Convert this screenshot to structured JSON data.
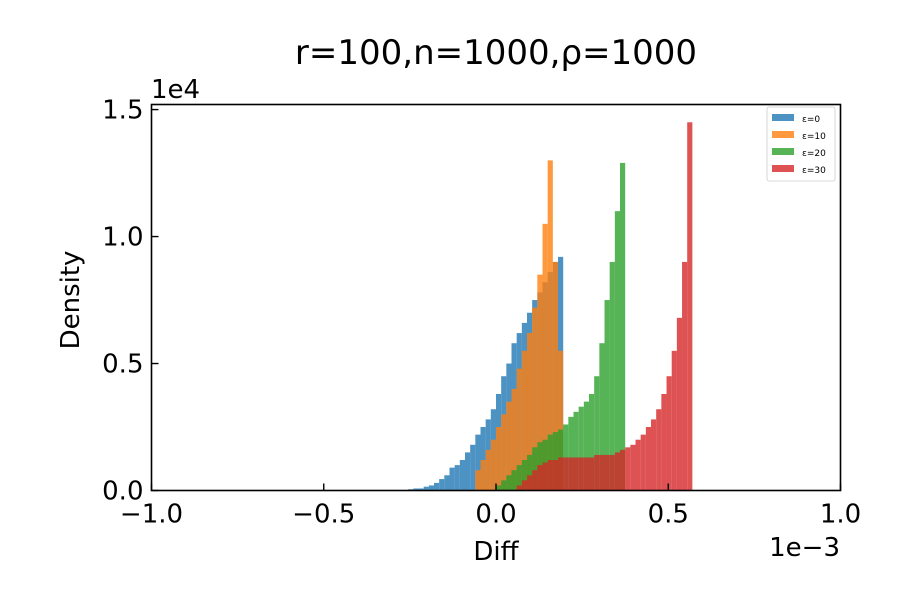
{
  "chart_data": {
    "type": "histogram",
    "title": "r=100,n=1000,ρ=1000",
    "xlabel": "Diff",
    "ylabel": "Density",
    "x_offset_text": "1e−3",
    "y_offset_text": "1e4",
    "xlim": [
      -1.0,
      1.0
    ],
    "ylim": [
      0,
      1.52
    ],
    "x_units": "×1e-3",
    "y_units": "×1e4",
    "xticks": [
      -1.0,
      -0.5,
      0.0,
      0.5,
      1.0
    ],
    "xtick_labels": [
      "−1.0",
      "−0.5",
      "0.0",
      "0.5",
      "1.0"
    ],
    "yticks": [
      0.0,
      0.5,
      1.0,
      1.5
    ],
    "ytick_labels": [
      "0.0",
      "0.5",
      "1.0",
      "1.5"
    ],
    "grid": false,
    "legend_position": "top-right",
    "series": [
      {
        "name": "ε=0",
        "color": "#1f77b4",
        "bins": [
          [
            -0.255,
            0.005
          ],
          [
            -0.24,
            0.008
          ],
          [
            -0.225,
            0.008
          ],
          [
            -0.21,
            0.015
          ],
          [
            -0.195,
            0.02
          ],
          [
            -0.18,
            0.03
          ],
          [
            -0.165,
            0.045
          ],
          [
            -0.15,
            0.06
          ],
          [
            -0.135,
            0.09
          ],
          [
            -0.12,
            0.1
          ],
          [
            -0.105,
            0.12
          ],
          [
            -0.09,
            0.15
          ],
          [
            -0.075,
            0.18
          ],
          [
            -0.06,
            0.22
          ],
          [
            -0.045,
            0.25
          ],
          [
            -0.03,
            0.28
          ],
          [
            -0.015,
            0.32
          ],
          [
            0.0,
            0.38
          ],
          [
            0.015,
            0.45
          ],
          [
            0.03,
            0.5
          ],
          [
            0.045,
            0.58
          ],
          [
            0.06,
            0.62
          ],
          [
            0.075,
            0.66
          ],
          [
            0.09,
            0.7
          ],
          [
            0.105,
            0.75
          ],
          [
            0.12,
            0.78
          ],
          [
            0.135,
            0.82
          ],
          [
            0.15,
            0.86
          ],
          [
            0.165,
            0.9
          ],
          [
            0.18,
            0.92
          ]
        ]
      },
      {
        "name": "ε=10",
        "color": "#ff7f0e",
        "bins": [
          [
            -0.06,
            0.08
          ],
          [
            -0.045,
            0.12
          ],
          [
            -0.03,
            0.16
          ],
          [
            -0.015,
            0.2
          ],
          [
            0.0,
            0.25
          ],
          [
            0.015,
            0.3
          ],
          [
            0.03,
            0.35
          ],
          [
            0.045,
            0.4
          ],
          [
            0.06,
            0.48
          ],
          [
            0.075,
            0.55
          ],
          [
            0.09,
            0.62
          ],
          [
            0.105,
            0.72
          ],
          [
            0.12,
            0.85
          ],
          [
            0.135,
            1.05
          ],
          [
            0.15,
            1.3
          ],
          [
            0.165,
            0.9
          ],
          [
            0.18,
            0.55
          ]
        ]
      },
      {
        "name": "ε=20",
        "color": "#2ca02c",
        "bins": [
          [
            0.0,
            0.02
          ],
          [
            0.015,
            0.04
          ],
          [
            0.03,
            0.06
          ],
          [
            0.045,
            0.08
          ],
          [
            0.06,
            0.1
          ],
          [
            0.075,
            0.12
          ],
          [
            0.09,
            0.14
          ],
          [
            0.105,
            0.17
          ],
          [
            0.12,
            0.19
          ],
          [
            0.135,
            0.2
          ],
          [
            0.15,
            0.22
          ],
          [
            0.165,
            0.23
          ],
          [
            0.18,
            0.24
          ],
          [
            0.195,
            0.26
          ],
          [
            0.21,
            0.29
          ],
          [
            0.225,
            0.31
          ],
          [
            0.24,
            0.33
          ],
          [
            0.255,
            0.35
          ],
          [
            0.27,
            0.38
          ],
          [
            0.285,
            0.45
          ],
          [
            0.3,
            0.58
          ],
          [
            0.315,
            0.75
          ],
          [
            0.33,
            0.9
          ],
          [
            0.345,
            1.1
          ],
          [
            0.36,
            1.29
          ]
        ]
      },
      {
        "name": "ε=30",
        "color": "#d62728",
        "bins": [
          [
            0.06,
            0.02
          ],
          [
            0.075,
            0.04
          ],
          [
            0.09,
            0.06
          ],
          [
            0.105,
            0.08
          ],
          [
            0.12,
            0.1
          ],
          [
            0.135,
            0.11
          ],
          [
            0.15,
            0.12
          ],
          [
            0.165,
            0.12
          ],
          [
            0.18,
            0.13
          ],
          [
            0.195,
            0.13
          ],
          [
            0.21,
            0.13
          ],
          [
            0.225,
            0.13
          ],
          [
            0.24,
            0.13
          ],
          [
            0.255,
            0.13
          ],
          [
            0.27,
            0.13
          ],
          [
            0.285,
            0.14
          ],
          [
            0.3,
            0.14
          ],
          [
            0.315,
            0.14
          ],
          [
            0.33,
            0.14
          ],
          [
            0.345,
            0.15
          ],
          [
            0.36,
            0.16
          ],
          [
            0.375,
            0.17
          ],
          [
            0.39,
            0.18
          ],
          [
            0.405,
            0.2
          ],
          [
            0.42,
            0.22
          ],
          [
            0.435,
            0.25
          ],
          [
            0.45,
            0.28
          ],
          [
            0.465,
            0.32
          ],
          [
            0.48,
            0.38
          ],
          [
            0.495,
            0.45
          ],
          [
            0.51,
            0.55
          ],
          [
            0.525,
            0.68
          ],
          [
            0.54,
            0.9
          ],
          [
            0.555,
            1.45
          ]
        ]
      }
    ]
  }
}
